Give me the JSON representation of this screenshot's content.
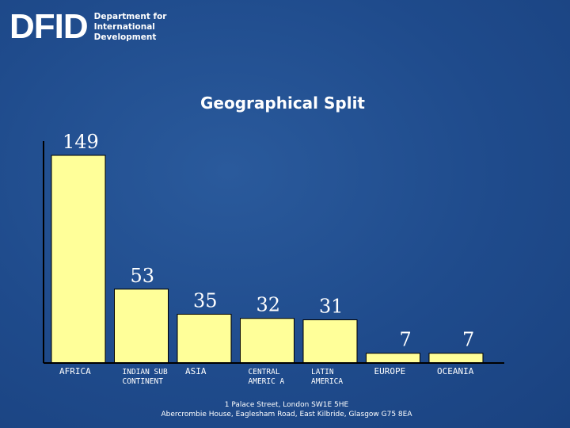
{
  "logo": {
    "mark": "DFID",
    "lines": [
      "Department for",
      "International",
      "Development"
    ]
  },
  "colors": {
    "background": "#1f4b8c",
    "bar_fill": "#ffff99",
    "text": "#ffffff",
    "axis": "#000000"
  },
  "chart_data": {
    "type": "bar",
    "title": "Geographical Split",
    "categories": [
      "AFRICA",
      "INDIAN SUB CONTINENT",
      "ASIA",
      "CENTRAL AMERICA",
      "LATIN AMERICA",
      "EUROPE",
      "OCEANIA"
    ],
    "category_lines": [
      [
        "AFRICA"
      ],
      [
        "INDIAN SUB",
        "CONTINENT"
      ],
      [
        "ASIA"
      ],
      [
        "CENTRAL",
        "AMERIC A"
      ],
      [
        "LATIN",
        "AMERICA"
      ],
      [
        "EUROPE"
      ],
      [
        "OCEANIA"
      ]
    ],
    "values": [
      149,
      53,
      35,
      32,
      31,
      7,
      7
    ],
    "data_labels": [
      "149",
      "53",
      "35",
      "32",
      "31",
      "7",
      "7"
    ],
    "ylim": [
      0,
      149
    ],
    "grid": false,
    "legend": "none"
  },
  "footer": {
    "line1": "1 Palace Street, London SW1E 5HE",
    "line2": "Abercrombie House, Eaglesham Road, East Kilbride, Glasgow G75 8EA"
  }
}
